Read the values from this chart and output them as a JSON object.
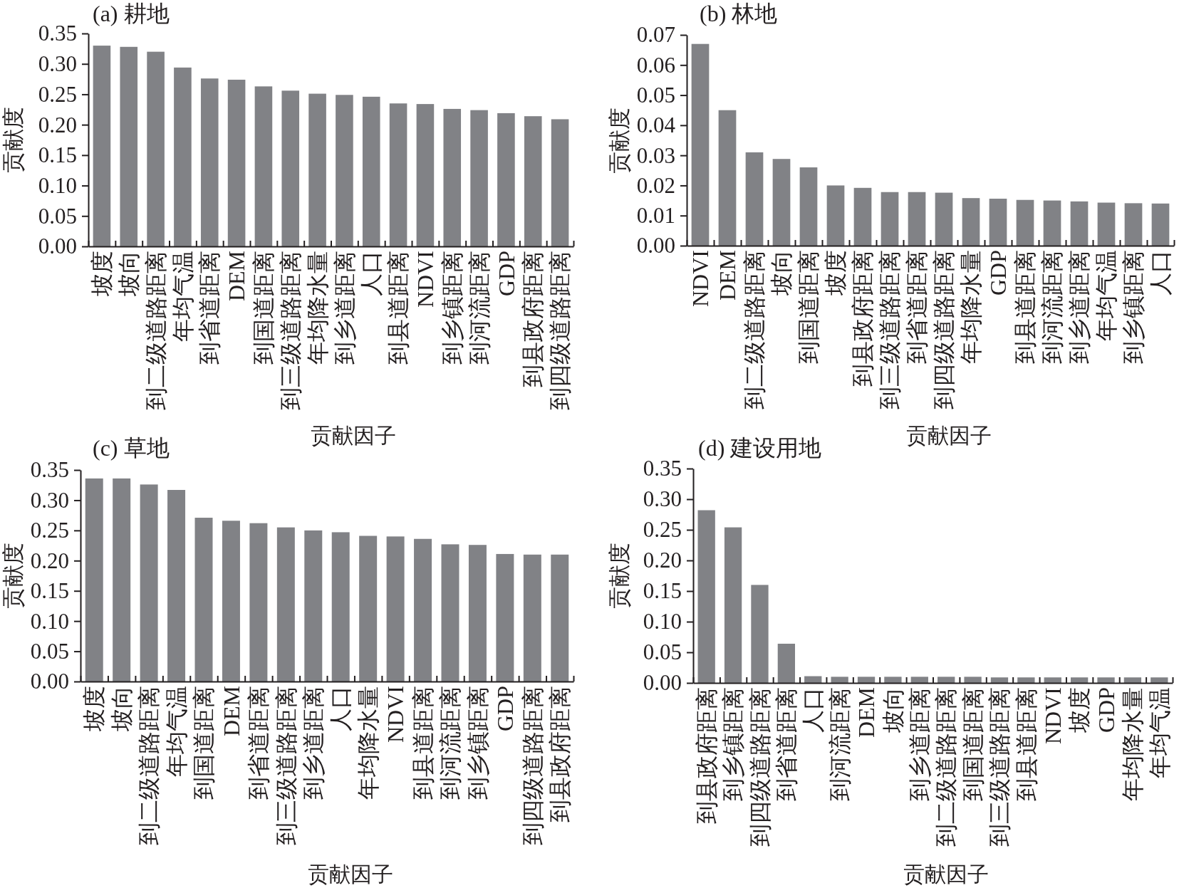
{
  "chart_data": [
    {
      "type": "bar",
      "title": "(a) 耕地",
      "xlabel": "贡献因子",
      "ylabel": "贡献度",
      "categories": [
        "坡度",
        "坡向",
        "到二级道路距离",
        "年均气温",
        "到省道距离",
        "DEM",
        "到国道距离",
        "到三级道路距离",
        "年均降水量",
        "到乡道距离",
        "人口",
        "到县道距离",
        "NDVI",
        "到乡镇距离",
        "到河流距离",
        "GDP",
        "到县政府距离",
        "到四级道路距离"
      ],
      "values": [
        0.33,
        0.328,
        0.32,
        0.294,
        0.276,
        0.274,
        0.263,
        0.256,
        0.251,
        0.249,
        0.246,
        0.235,
        0.234,
        0.226,
        0.224,
        0.219,
        0.214,
        0.209
      ],
      "color": "#818286",
      "ylim": [
        0,
        0.35
      ],
      "yticks": [
        {
          "value": 0,
          "label": "0.00"
        },
        0.05,
        {
          "value": 0.1,
          "label": "0.10"
        },
        0.15,
        {
          "value": 0.2,
          "label": "0.20"
        },
        0.25,
        {
          "value": 0.3,
          "label": "0.30"
        },
        0.35
      ]
    },
    {
      "type": "bar",
      "title": "(b) 林地",
      "xlabel": "贡献因子",
      "ylabel": "贡献度",
      "categories": [
        "NDVI",
        "DEM",
        "到二级道路距离",
        "坡向",
        "到国道距离",
        "坡度",
        "到县政府距离",
        "到三级道路距离",
        "到省道距离",
        "到四级道路距离",
        "年均降水量",
        "GDP",
        "到县道距离",
        "到河流距离",
        "到乡道距离",
        "年均气温",
        "到乡镇距离",
        "人口"
      ],
      "values": [
        0.067,
        0.045,
        0.031,
        0.0288,
        0.026,
        0.02,
        0.0192,
        0.0178,
        0.0178,
        0.0176,
        0.0158,
        0.0156,
        0.0152,
        0.015,
        0.0147,
        0.0143,
        0.0141,
        0.014
      ],
      "color": "#818286",
      "ylim": [
        0,
        0.07
      ],
      "yticks": [
        {
          "value": 0,
          "label": "0.00"
        },
        0.01,
        0.02,
        0.03,
        0.04,
        0.05,
        0.06,
        0.07
      ]
    },
    {
      "type": "bar",
      "title": "(c) 草地",
      "xlabel": "贡献因子",
      "ylabel": "贡献度",
      "categories": [
        "坡度",
        "坡向",
        "到二级道路距离",
        "年均气温",
        "到国道距离",
        "DEM",
        "到省道距离",
        "到三级道路距离",
        "到乡道距离",
        "人口",
        "年均降水量",
        "NDVI",
        "到县道距离",
        "到河流距离",
        "到乡镇距离",
        "GDP",
        "到四级道路距离",
        "到县政府距离"
      ],
      "values": [
        0.336,
        0.336,
        0.326,
        0.317,
        0.271,
        0.266,
        0.262,
        0.255,
        0.25,
        0.247,
        0.241,
        0.24,
        0.236,
        0.227,
        0.226,
        0.211,
        0.21,
        0.21
      ],
      "color": "#818286",
      "ylim": [
        0,
        0.35
      ],
      "yticks": [
        {
          "value": 0,
          "label": "0.00"
        },
        0.05,
        {
          "value": 0.1,
          "label": "0.10"
        },
        0.15,
        {
          "value": 0.2,
          "label": "0.20"
        },
        0.25,
        {
          "value": 0.3,
          "label": "0.30"
        },
        0.35
      ]
    },
    {
      "type": "bar",
      "title": "(d) 建设用地",
      "xlabel": "贡献因子",
      "ylabel": "贡献度",
      "categories": [
        "到县政府距离",
        "到乡镇距离",
        "到四级道路距离",
        "到省道距离",
        "人口",
        "到河流距离",
        "DEM",
        "坡向",
        "到乡道距离",
        "到二级道路距离",
        "到国道距离",
        "到三级道路距离",
        "到县道距离",
        "NDVI",
        "坡度",
        "GDP",
        "年均降水量",
        "年均气温"
      ],
      "values": [
        0.282,
        0.254,
        0.16,
        0.064,
        0.011,
        0.01,
        0.01,
        0.01,
        0.01,
        0.01,
        0.01,
        0.009,
        0.009,
        0.009,
        0.009,
        0.009,
        0.009,
        0.009
      ],
      "color": "#818286",
      "ylim": [
        0,
        0.35
      ],
      "yticks": [
        {
          "value": 0,
          "label": "0.00"
        },
        0.05,
        {
          "value": 0.1,
          "label": "0.10"
        },
        0.15,
        {
          "value": 0.2,
          "label": "0.20"
        },
        0.25,
        {
          "value": 0.3,
          "label": "0.30"
        },
        0.35
      ]
    }
  ]
}
